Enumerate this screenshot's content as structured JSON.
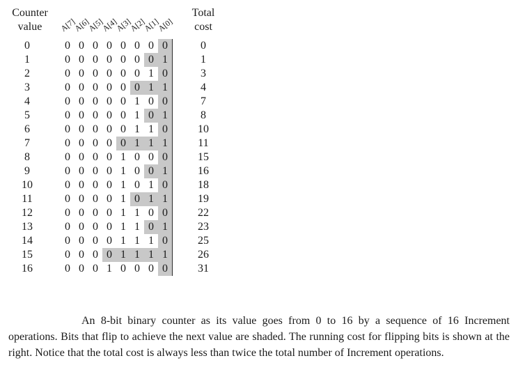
{
  "headers": {
    "counter_line1": "Counter",
    "counter_line2": "value",
    "total_line1": "Total",
    "total_line2": "cost"
  },
  "bit_labels": [
    "A[7]",
    "A[6]",
    "A[5]",
    "A[4]",
    "A[3]",
    "A[2]",
    "A[1]",
    "A[0]"
  ],
  "rows": [
    {
      "value": "0",
      "bits": [
        "0",
        "0",
        "0",
        "0",
        "0",
        "0",
        "0",
        "0"
      ],
      "shaded": 1,
      "cost": "0"
    },
    {
      "value": "1",
      "bits": [
        "0",
        "0",
        "0",
        "0",
        "0",
        "0",
        "0",
        "1"
      ],
      "shaded": 2,
      "cost": "1"
    },
    {
      "value": "2",
      "bits": [
        "0",
        "0",
        "0",
        "0",
        "0",
        "0",
        "1",
        "0"
      ],
      "shaded": 1,
      "cost": "3"
    },
    {
      "value": "3",
      "bits": [
        "0",
        "0",
        "0",
        "0",
        "0",
        "0",
        "1",
        "1"
      ],
      "shaded": 3,
      "cost": "4"
    },
    {
      "value": "4",
      "bits": [
        "0",
        "0",
        "0",
        "0",
        "0",
        "1",
        "0",
        "0"
      ],
      "shaded": 1,
      "cost": "7"
    },
    {
      "value": "5",
      "bits": [
        "0",
        "0",
        "0",
        "0",
        "0",
        "1",
        "0",
        "1"
      ],
      "shaded": 2,
      "cost": "8"
    },
    {
      "value": "6",
      "bits": [
        "0",
        "0",
        "0",
        "0",
        "0",
        "1",
        "1",
        "0"
      ],
      "shaded": 1,
      "cost": "10"
    },
    {
      "value": "7",
      "bits": [
        "0",
        "0",
        "0",
        "0",
        "0",
        "1",
        "1",
        "1"
      ],
      "shaded": 4,
      "cost": "11"
    },
    {
      "value": "8",
      "bits": [
        "0",
        "0",
        "0",
        "0",
        "1",
        "0",
        "0",
        "0"
      ],
      "shaded": 1,
      "cost": "15"
    },
    {
      "value": "9",
      "bits": [
        "0",
        "0",
        "0",
        "0",
        "1",
        "0",
        "0",
        "1"
      ],
      "shaded": 2,
      "cost": "16"
    },
    {
      "value": "10",
      "bits": [
        "0",
        "0",
        "0",
        "0",
        "1",
        "0",
        "1",
        "0"
      ],
      "shaded": 1,
      "cost": "18"
    },
    {
      "value": "11",
      "bits": [
        "0",
        "0",
        "0",
        "0",
        "1",
        "0",
        "1",
        "1"
      ],
      "shaded": 3,
      "cost": "19"
    },
    {
      "value": "12",
      "bits": [
        "0",
        "0",
        "0",
        "0",
        "1",
        "1",
        "0",
        "0"
      ],
      "shaded": 1,
      "cost": "22"
    },
    {
      "value": "13",
      "bits": [
        "0",
        "0",
        "0",
        "0",
        "1",
        "1",
        "0",
        "1"
      ],
      "shaded": 2,
      "cost": "23"
    },
    {
      "value": "14",
      "bits": [
        "0",
        "0",
        "0",
        "0",
        "1",
        "1",
        "1",
        "0"
      ],
      "shaded": 1,
      "cost": "25"
    },
    {
      "value": "15",
      "bits": [
        "0",
        "0",
        "0",
        "0",
        "1",
        "1",
        "1",
        "1"
      ],
      "shaded": 5,
      "cost": "26"
    },
    {
      "value": "16",
      "bits": [
        "0",
        "0",
        "0",
        "1",
        "0",
        "0",
        "0",
        "0"
      ],
      "shaded": 1,
      "cost": "31"
    }
  ],
  "caption": {
    "part1": "An 8-bit binary counter as its value goes from 0 to 16 by a sequence of 16 ",
    "sc1": "Increment",
    "part2": " operations. Bits that flip to achieve the next value are shaded. The running cost for flipping bits is shown at the right. Notice that the total cost is always less than twice the total number of ",
    "sc2": "Increment",
    "part3": " operations."
  }
}
